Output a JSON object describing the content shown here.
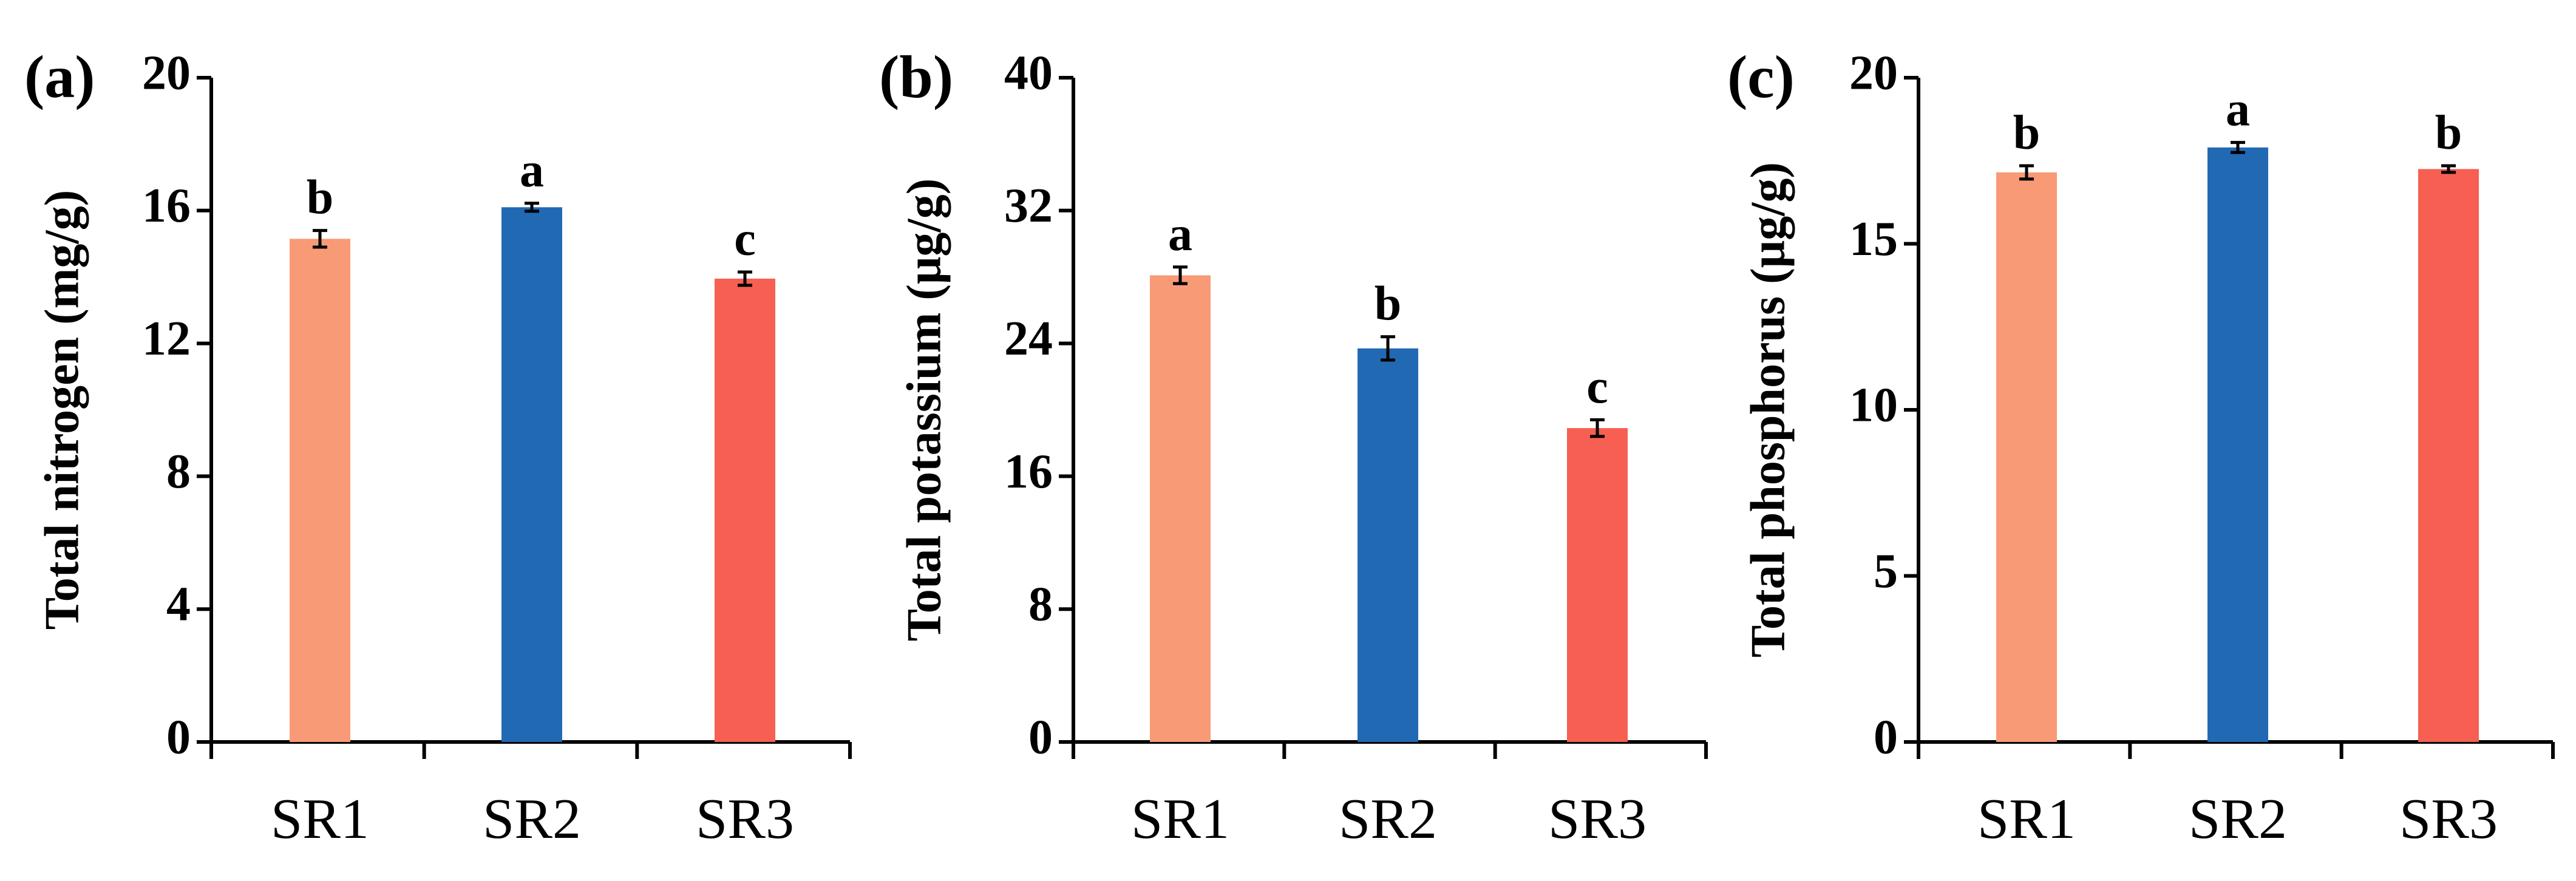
{
  "chart_data": [
    {
      "type": "bar",
      "panel_label": "(a)",
      "title": "",
      "xlabel": "",
      "ylabel": "Total nitrogen (mg/g)",
      "ylim": [
        0,
        20
      ],
      "yticks": [
        "0",
        "4",
        "8",
        "12",
        "16",
        "20"
      ],
      "categories": [
        "SR1",
        "SR2",
        "SR3"
      ],
      "values": [
        15.15,
        16.1,
        13.95
      ],
      "errors": [
        0.25,
        0.12,
        0.2
      ],
      "significance": [
        "b",
        "a",
        "c"
      ],
      "bar_colors": [
        "#f99a77",
        "#2269b3",
        "#f65f52"
      ]
    },
    {
      "type": "bar",
      "panel_label": "(b)",
      "title": "",
      "xlabel": "",
      "ylabel": "Total potassium (μg/g)",
      "ylim": [
        0,
        40
      ],
      "yticks": [
        "0",
        "8",
        "16",
        "24",
        "32",
        "40"
      ],
      "categories": [
        "SR1",
        "SR2",
        "SR3"
      ],
      "values": [
        28.1,
        23.7,
        18.9
      ],
      "errors": [
        0.5,
        0.7,
        0.5
      ],
      "significance": [
        "a",
        "b",
        "c"
      ],
      "bar_colors": [
        "#f99a77",
        "#2269b3",
        "#f65f52"
      ]
    },
    {
      "type": "bar",
      "panel_label": "(c)",
      "title": "",
      "xlabel": "",
      "ylabel": "Total phosphorus (μg/g)",
      "ylim": [
        0,
        20
      ],
      "yticks": [
        "0",
        "5",
        "10",
        "15",
        "20"
      ],
      "categories": [
        "SR1",
        "SR2",
        "SR3"
      ],
      "values": [
        17.15,
        17.9,
        17.25
      ],
      "errors": [
        0.2,
        0.15,
        0.1
      ],
      "significance": [
        "b",
        "a",
        "b"
      ],
      "bar_colors": [
        "#f99a77",
        "#2269b3",
        "#f65f52"
      ]
    }
  ]
}
